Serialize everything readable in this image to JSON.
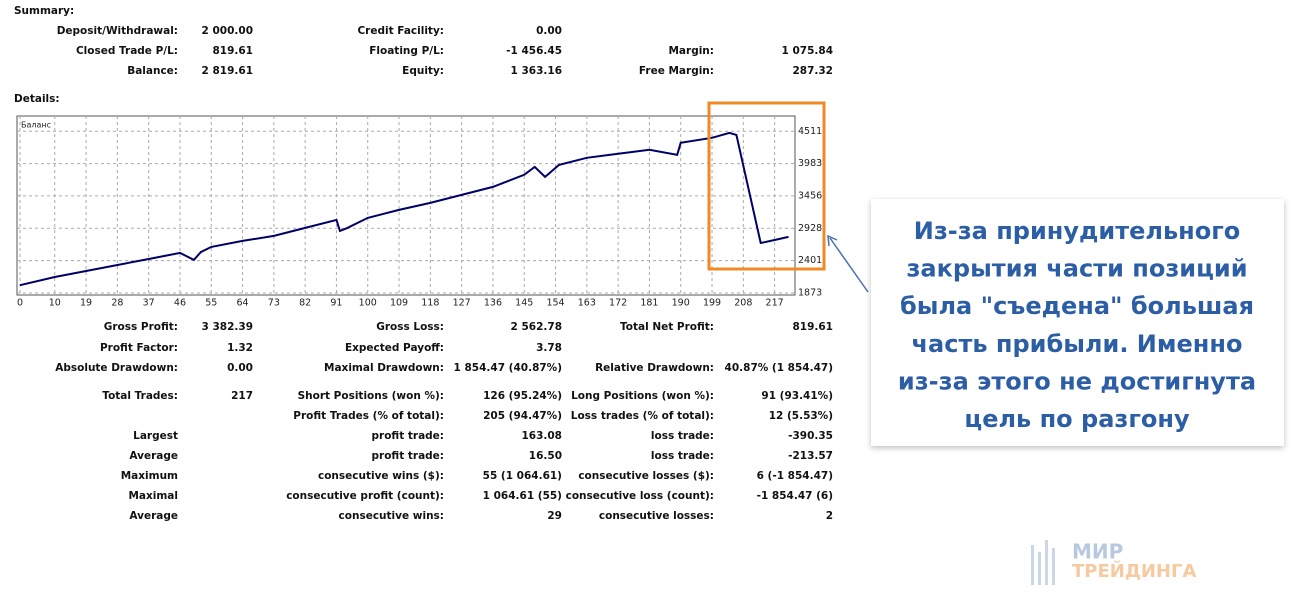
{
  "summary": {
    "title": "Summary:",
    "rows": [
      [
        [
          "Deposit/Withdrawal:",
          "2 000.00"
        ],
        [
          "Credit Facility:",
          "0.00"
        ],
        null
      ],
      [
        [
          "Closed Trade P/L:",
          "819.61"
        ],
        [
          "Floating P/L:",
          "-1 456.45"
        ],
        [
          "Margin:",
          "1 075.84"
        ]
      ],
      [
        [
          "Balance:",
          "2 819.61"
        ],
        [
          "Equity:",
          "1 363.16"
        ],
        [
          "Free Margin:",
          "287.32"
        ]
      ]
    ]
  },
  "details": {
    "title": "Details:",
    "rows": [
      [
        [
          "Gross Profit:",
          "3 382.39"
        ],
        [
          "Gross Loss:",
          "2 562.78"
        ],
        [
          "Total Net Profit:",
          "819.61"
        ]
      ],
      [
        [
          "Profit Factor:",
          "1.32"
        ],
        [
          "Expected Payoff:",
          "3.78"
        ],
        null
      ],
      [
        [
          "Absolute Drawdown:",
          "0.00"
        ],
        [
          "Maximal Drawdown:",
          "1 854.47 (40.87%)"
        ],
        [
          "Relative Drawdown:",
          "40.87% (1 854.47)"
        ]
      ],
      [
        [
          "Total Trades:",
          "217"
        ],
        [
          "Short Positions (won %):",
          "126 (95.24%)"
        ],
        [
          "Long Positions (won %):",
          "91 (93.41%)"
        ]
      ],
      [
        null,
        [
          "Profit Trades (% of total):",
          "205 (94.47%)"
        ],
        [
          "Loss trades (% of total):",
          "12 (5.53%)"
        ]
      ],
      [
        [
          "Largest"
        ],
        [
          "profit trade:",
          "163.08"
        ],
        [
          "loss trade:",
          "-390.35"
        ]
      ],
      [
        [
          "Average"
        ],
        [
          "profit trade:",
          "16.50"
        ],
        [
          "loss trade:",
          "-213.57"
        ]
      ],
      [
        [
          "Maximum"
        ],
        [
          "consecutive wins ($):",
          "55 (1 064.61)"
        ],
        [
          "consecutive losses ($):",
          "6 (-1 854.47)"
        ]
      ],
      [
        [
          "Maximal"
        ],
        [
          "consecutive profit (count):",
          "1 064.61 (55)"
        ],
        [
          "consecutive loss (count):",
          "-1 854.47 (6)"
        ]
      ],
      [
        [
          "Average"
        ],
        [
          "consecutive wins:",
          "29"
        ],
        [
          "consecutive losses:",
          "2"
        ]
      ]
    ]
  },
  "chart_data": {
    "type": "line",
    "x": [
      0,
      10,
      19,
      28,
      37,
      46,
      50,
      52,
      55,
      64,
      73,
      82,
      91,
      92,
      94,
      100,
      109,
      118,
      127,
      136,
      145,
      148,
      151,
      155,
      163,
      172,
      181,
      189,
      190,
      199,
      204,
      206,
      213,
      217,
      221
    ],
    "series": [
      {
        "name": "Баланс",
        "color": "#000066",
        "values": [
          2000,
          2134,
          2232,
          2330,
          2428,
          2526,
          2412,
          2540,
          2624,
          2722,
          2804,
          2934,
          3065,
          2885,
          2930,
          3098,
          3228,
          3343,
          3473,
          3604,
          3800,
          3930,
          3767,
          3963,
          4078,
          4143,
          4208,
          4127,
          4322,
          4404,
          4485,
          4452,
          2689,
          2738,
          2787
        ]
      }
    ],
    "xlim": [
      0,
      222
    ],
    "ylim": [
      1840,
      4760
    ],
    "xticks": [
      0,
      10,
      19,
      28,
      37,
      46,
      55,
      64,
      73,
      82,
      91,
      100,
      109,
      118,
      127,
      136,
      145,
      154,
      163,
      172,
      181,
      190,
      199,
      208,
      217
    ],
    "yticks": [
      1873,
      2401,
      2928,
      3456,
      3983,
      4511
    ],
    "grid": true
  },
  "callout": {
    "lines": [
      "Из-за принудительного",
      "закрытия части позиций",
      "была \"съедена\" большая",
      "часть прибыли. Именно",
      "из-за этого не достигнута",
      "цель по разгону"
    ]
  },
  "logo": {
    "line1": "МИР",
    "line2": "ТРЕЙДИНГА"
  }
}
